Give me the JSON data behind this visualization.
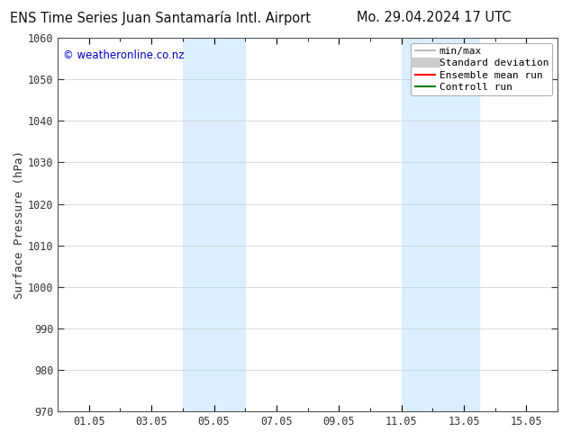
{
  "title_left": "ENS Time Series Juan Santamaría Intl. Airport",
  "title_right": "Mo. 29.04.2024 17 UTC",
  "ylabel": "Surface Pressure (hPa)",
  "ylim": [
    970,
    1060
  ],
  "yticks": [
    970,
    980,
    990,
    1000,
    1010,
    1020,
    1030,
    1040,
    1050,
    1060
  ],
  "xtick_labels": [
    "01.05",
    "03.05",
    "05.05",
    "07.05",
    "09.05",
    "11.05",
    "13.05",
    "15.05"
  ],
  "xtick_positions": [
    1,
    3,
    5,
    7,
    9,
    11,
    13,
    15
  ],
  "xlim": [
    0,
    16
  ],
  "shaded_regions": [
    {
      "xmin": 4.0,
      "xmax": 6.0
    },
    {
      "xmin": 11.0,
      "xmax": 13.5
    }
  ],
  "shaded_color": "#daeeff",
  "watermark_text": "© weatheronline.co.nz",
  "watermark_color": "#0000cc",
  "legend_entries": [
    {
      "label": "min/max",
      "color": "#aaaaaa",
      "linewidth": 1.2
    },
    {
      "label": "Standard deviation",
      "color": "#cccccc",
      "linewidth": 8
    },
    {
      "label": "Ensemble mean run",
      "color": "red",
      "linewidth": 1.5
    },
    {
      "label": "Controll run",
      "color": "green",
      "linewidth": 1.5
    }
  ],
  "bg_color": "#ffffff",
  "grid_color": "#cccccc",
  "title_color": "#111111",
  "tick_label_color": "#333333",
  "title_fontsize": 10.5,
  "axis_label_fontsize": 9,
  "tick_fontsize": 8.5,
  "legend_fontsize": 8,
  "watermark_fontsize": 8.5
}
